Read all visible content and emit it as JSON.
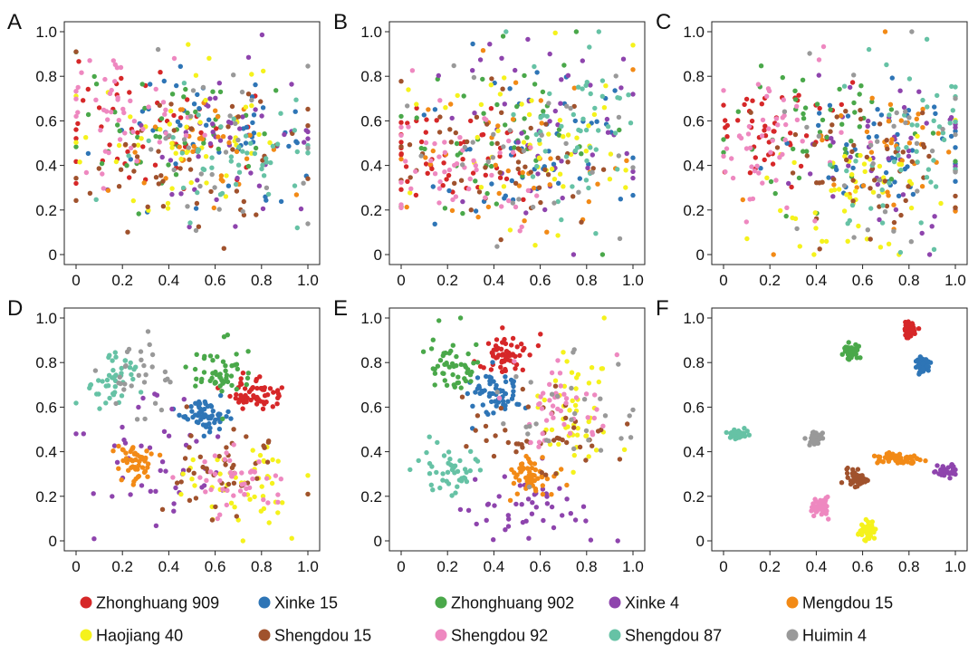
{
  "figure": {
    "legend": [
      {
        "name": "Zhonghuang 909",
        "color": "#d62728"
      },
      {
        "name": "Xinke 15",
        "color": "#2e75b6"
      },
      {
        "name": "Zhonghuang 902",
        "color": "#4aa84a"
      },
      {
        "name": "Xinke 4",
        "color": "#8e44ad"
      },
      {
        "name": "Mengdou 15",
        "color": "#f28a16"
      },
      {
        "name": "Haojiang 40",
        "color": "#f5f21c"
      },
      {
        "name": "Shengdou 15",
        "color": "#a0522d"
      },
      {
        "name": "Shengdou 92",
        "color": "#ee88c0"
      },
      {
        "name": "Shengdou 87",
        "color": "#66c2a5"
      },
      {
        "name": "Huimin 4",
        "color": "#999999"
      }
    ]
  },
  "chart_data": [
    {
      "type": "scatter",
      "panel_label": "A",
      "xlim": [
        0,
        1
      ],
      "ylim": [
        0,
        1
      ],
      "xticks": [
        "0",
        "0.2",
        "0.4",
        "0.6",
        "0.8",
        "1.0"
      ],
      "yticks": [
        "0",
        "0.2",
        "0.4",
        "0.6",
        "0.8",
        "1.0"
      ],
      "clusters": [
        {
          "series": "Zhonghuang 909",
          "cx": 0.3,
          "cy": 0.55,
          "sx": 0.22,
          "sy": 0.16,
          "n": 50
        },
        {
          "series": "Xinke 15",
          "cx": 0.6,
          "cy": 0.55,
          "sx": 0.22,
          "sy": 0.14,
          "n": 50
        },
        {
          "series": "Zhonghuang 902",
          "cx": 0.4,
          "cy": 0.58,
          "sx": 0.22,
          "sy": 0.16,
          "n": 50
        },
        {
          "series": "Xinke 4",
          "cx": 0.6,
          "cy": 0.48,
          "sx": 0.24,
          "sy": 0.18,
          "n": 50
        },
        {
          "series": "Mengdou 15",
          "cx": 0.55,
          "cy": 0.45,
          "sx": 0.22,
          "sy": 0.16,
          "n": 40
        },
        {
          "series": "Haojiang 40",
          "cx": 0.5,
          "cy": 0.55,
          "sx": 0.22,
          "sy": 0.16,
          "n": 50
        },
        {
          "series": "Shengdou 15",
          "cx": 0.5,
          "cy": 0.45,
          "sx": 0.24,
          "sy": 0.16,
          "n": 50
        },
        {
          "series": "Shengdou 92",
          "cx": 0.2,
          "cy": 0.62,
          "sx": 0.16,
          "sy": 0.14,
          "n": 50
        },
        {
          "series": "Shengdou 87",
          "cx": 0.7,
          "cy": 0.45,
          "sx": 0.2,
          "sy": 0.14,
          "n": 50
        },
        {
          "series": "Huimin 4",
          "cx": 0.6,
          "cy": 0.5,
          "sx": 0.24,
          "sy": 0.2,
          "n": 30
        }
      ]
    },
    {
      "type": "scatter",
      "panel_label": "B",
      "xlim": [
        0,
        1
      ],
      "ylim": [
        0,
        1
      ],
      "xticks": [
        "0",
        "0.2",
        "0.4",
        "0.6",
        "0.8",
        "1.0"
      ],
      "yticks": [
        "0",
        "0.2",
        "0.4",
        "0.6",
        "0.8",
        "1.0"
      ],
      "clusters": [
        {
          "series": "Zhonghuang 909",
          "cx": 0.2,
          "cy": 0.45,
          "sx": 0.16,
          "sy": 0.12,
          "n": 50
        },
        {
          "series": "Xinke 15",
          "cx": 0.6,
          "cy": 0.5,
          "sx": 0.22,
          "sy": 0.18,
          "n": 50
        },
        {
          "series": "Zhonghuang 902",
          "cx": 0.45,
          "cy": 0.55,
          "sx": 0.24,
          "sy": 0.18,
          "n": 50
        },
        {
          "series": "Xinke 4",
          "cx": 0.6,
          "cy": 0.55,
          "sx": 0.22,
          "sy": 0.2,
          "n": 50
        },
        {
          "series": "Mengdou 15",
          "cx": 0.5,
          "cy": 0.45,
          "sx": 0.24,
          "sy": 0.18,
          "n": 40
        },
        {
          "series": "Haojiang 40",
          "cx": 0.55,
          "cy": 0.5,
          "sx": 0.24,
          "sy": 0.2,
          "n": 50
        },
        {
          "series": "Shengdou 15",
          "cx": 0.45,
          "cy": 0.4,
          "sx": 0.24,
          "sy": 0.16,
          "n": 50
        },
        {
          "series": "Shengdou 92",
          "cx": 0.25,
          "cy": 0.4,
          "sx": 0.18,
          "sy": 0.14,
          "n": 50
        },
        {
          "series": "Shengdou 87",
          "cx": 0.75,
          "cy": 0.55,
          "sx": 0.16,
          "sy": 0.2,
          "n": 50
        },
        {
          "series": "Huimin 4",
          "cx": 0.55,
          "cy": 0.5,
          "sx": 0.24,
          "sy": 0.2,
          "n": 30
        }
      ]
    },
    {
      "type": "scatter",
      "panel_label": "C",
      "xlim": [
        0,
        1
      ],
      "ylim": [
        0,
        1
      ],
      "xticks": [
        "0",
        "0.2",
        "0.4",
        "0.6",
        "0.8",
        "1.0"
      ],
      "yticks": [
        "0",
        "0.2",
        "0.4",
        "0.6",
        "0.8",
        "1.0"
      ],
      "clusters": [
        {
          "series": "Zhonghuang 909",
          "cx": 0.2,
          "cy": 0.55,
          "sx": 0.14,
          "sy": 0.12,
          "n": 50
        },
        {
          "series": "Xinke 15",
          "cx": 0.65,
          "cy": 0.45,
          "sx": 0.2,
          "sy": 0.18,
          "n": 50
        },
        {
          "series": "Zhonghuang 902",
          "cx": 0.4,
          "cy": 0.55,
          "sx": 0.22,
          "sy": 0.18,
          "n": 50
        },
        {
          "series": "Xinke 4",
          "cx": 0.75,
          "cy": 0.4,
          "sx": 0.2,
          "sy": 0.22,
          "n": 50
        },
        {
          "series": "Mengdou 15",
          "cx": 0.7,
          "cy": 0.45,
          "sx": 0.18,
          "sy": 0.2,
          "n": 40
        },
        {
          "series": "Haojiang 40",
          "cx": 0.55,
          "cy": 0.35,
          "sx": 0.22,
          "sy": 0.18,
          "n": 50
        },
        {
          "series": "Shengdou 15",
          "cx": 0.55,
          "cy": 0.4,
          "sx": 0.24,
          "sy": 0.18,
          "n": 50
        },
        {
          "series": "Shengdou 92",
          "cx": 0.18,
          "cy": 0.5,
          "sx": 0.12,
          "sy": 0.2,
          "n": 50
        },
        {
          "series": "Shengdou 87",
          "cx": 0.8,
          "cy": 0.5,
          "sx": 0.16,
          "sy": 0.22,
          "n": 50
        },
        {
          "series": "Huimin 4",
          "cx": 0.65,
          "cy": 0.45,
          "sx": 0.22,
          "sy": 0.22,
          "n": 30
        }
      ]
    },
    {
      "type": "scatter",
      "panel_label": "D",
      "xlim": [
        0,
        1
      ],
      "ylim": [
        0,
        1
      ],
      "xticks": [
        "0",
        "0.2",
        "0.4",
        "0.6",
        "0.8",
        "1.0"
      ],
      "yticks": [
        "0",
        "0.2",
        "0.4",
        "0.6",
        "0.8",
        "1.0"
      ],
      "clusters": [
        {
          "series": "Zhonghuang 909",
          "cx": 0.78,
          "cy": 0.65,
          "sx": 0.05,
          "sy": 0.04,
          "n": 60
        },
        {
          "series": "Xinke 15",
          "cx": 0.55,
          "cy": 0.56,
          "sx": 0.05,
          "sy": 0.04,
          "n": 60
        },
        {
          "series": "Zhonghuang 902",
          "cx": 0.62,
          "cy": 0.76,
          "sx": 0.08,
          "sy": 0.06,
          "n": 50
        },
        {
          "series": "Xinke 4",
          "cx": 0.35,
          "cy": 0.35,
          "sx": 0.16,
          "sy": 0.14,
          "n": 45
        },
        {
          "series": "Mengdou 15",
          "cx": 0.25,
          "cy": 0.36,
          "sx": 0.05,
          "sy": 0.04,
          "n": 50
        },
        {
          "series": "Haojiang 40",
          "cx": 0.7,
          "cy": 0.25,
          "sx": 0.12,
          "sy": 0.1,
          "n": 50
        },
        {
          "series": "Shengdou 15",
          "cx": 0.65,
          "cy": 0.32,
          "sx": 0.14,
          "sy": 0.1,
          "n": 45
        },
        {
          "series": "Shengdou 92",
          "cx": 0.7,
          "cy": 0.25,
          "sx": 0.1,
          "sy": 0.08,
          "n": 45
        },
        {
          "series": "Shengdou 87",
          "cx": 0.15,
          "cy": 0.72,
          "sx": 0.06,
          "sy": 0.08,
          "n": 45
        },
        {
          "series": "Huimin 4",
          "cx": 0.28,
          "cy": 0.72,
          "sx": 0.08,
          "sy": 0.08,
          "n": 30
        }
      ]
    },
    {
      "type": "scatter",
      "panel_label": "E",
      "xlim": [
        0,
        1
      ],
      "ylim": [
        0,
        1
      ],
      "xticks": [
        "0",
        "0.2",
        "0.4",
        "0.6",
        "0.8",
        "1.0"
      ],
      "yticks": [
        "0",
        "0.2",
        "0.4",
        "0.6",
        "0.8",
        "1.0"
      ],
      "clusters": [
        {
          "series": "Zhonghuang 909",
          "cx": 0.45,
          "cy": 0.84,
          "sx": 0.05,
          "sy": 0.05,
          "n": 60
        },
        {
          "series": "Xinke 15",
          "cx": 0.4,
          "cy": 0.64,
          "sx": 0.05,
          "sy": 0.05,
          "n": 60
        },
        {
          "series": "Zhonghuang 902",
          "cx": 0.22,
          "cy": 0.8,
          "sx": 0.06,
          "sy": 0.08,
          "n": 50
        },
        {
          "series": "Xinke 4",
          "cx": 0.55,
          "cy": 0.15,
          "sx": 0.14,
          "sy": 0.08,
          "n": 45
        },
        {
          "series": "Mengdou 15",
          "cx": 0.56,
          "cy": 0.29,
          "sx": 0.05,
          "sy": 0.05,
          "n": 55
        },
        {
          "series": "Haojiang 40",
          "cx": 0.75,
          "cy": 0.6,
          "sx": 0.1,
          "sy": 0.14,
          "n": 50
        },
        {
          "series": "Shengdou 15",
          "cx": 0.6,
          "cy": 0.48,
          "sx": 0.18,
          "sy": 0.1,
          "n": 45
        },
        {
          "series": "Shengdou 92",
          "cx": 0.7,
          "cy": 0.62,
          "sx": 0.1,
          "sy": 0.1,
          "n": 45
        },
        {
          "series": "Shengdou 87",
          "cx": 0.22,
          "cy": 0.32,
          "sx": 0.08,
          "sy": 0.07,
          "n": 45
        },
        {
          "series": "Huimin 4",
          "cx": 0.7,
          "cy": 0.55,
          "sx": 0.14,
          "sy": 0.12,
          "n": 30
        }
      ]
    },
    {
      "type": "scatter",
      "panel_label": "F",
      "xlim": [
        0,
        1
      ],
      "ylim": [
        0,
        1
      ],
      "xticks": [
        "0",
        "0.2",
        "0.4",
        "0.6",
        "0.8",
        "1.0"
      ],
      "yticks": [
        "0",
        "0.2",
        "0.4",
        "0.6",
        "0.8",
        "1.0"
      ],
      "clusters": [
        {
          "series": "Zhonghuang 909",
          "cx": 0.8,
          "cy": 0.95,
          "sx": 0.015,
          "sy": 0.02,
          "n": 50
        },
        {
          "series": "Xinke 15",
          "cx": 0.86,
          "cy": 0.79,
          "sx": 0.015,
          "sy": 0.018,
          "n": 45
        },
        {
          "series": "Zhonghuang 902",
          "cx": 0.55,
          "cy": 0.85,
          "sx": 0.018,
          "sy": 0.015,
          "n": 45
        },
        {
          "series": "Xinke 4",
          "cx": 0.96,
          "cy": 0.31,
          "sx": 0.02,
          "sy": 0.015,
          "n": 40
        },
        {
          "series": "Mengdou 15",
          "cx": 0.77,
          "cy": 0.37,
          "sx": 0.06,
          "sy": 0.012,
          "n": 50
        },
        {
          "series": "Haojiang 40",
          "cx": 0.62,
          "cy": 0.05,
          "sx": 0.018,
          "sy": 0.02,
          "n": 45
        },
        {
          "series": "Shengdou 15",
          "cx": 0.57,
          "cy": 0.29,
          "sx": 0.03,
          "sy": 0.02,
          "n": 40
        },
        {
          "series": "Shengdou 92",
          "cx": 0.42,
          "cy": 0.16,
          "sx": 0.018,
          "sy": 0.02,
          "n": 45
        },
        {
          "series": "Shengdou 87",
          "cx": 0.06,
          "cy": 0.48,
          "sx": 0.02,
          "sy": 0.012,
          "n": 45
        },
        {
          "series": "Huimin 4",
          "cx": 0.4,
          "cy": 0.46,
          "sx": 0.018,
          "sy": 0.015,
          "n": 35
        }
      ]
    }
  ]
}
